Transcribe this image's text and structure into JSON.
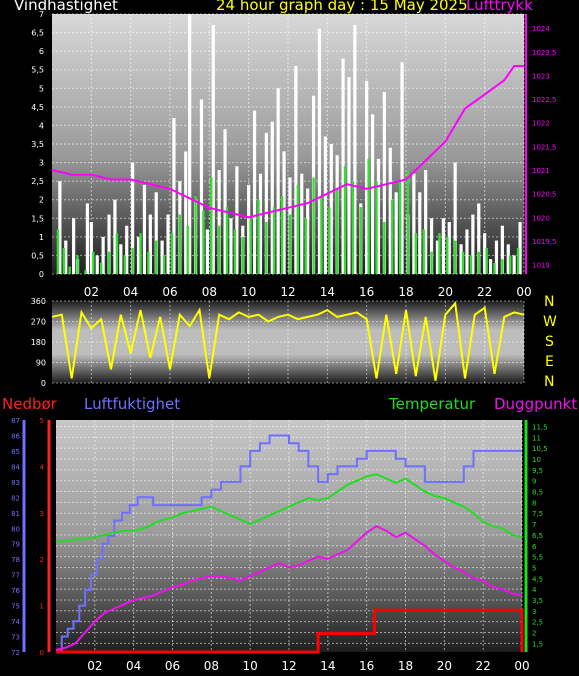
{
  "header": {
    "wind_label": "Vindhastighet",
    "title": "24 hour graph day : 15 May 2025",
    "pressure_label": "Lufttrykk"
  },
  "bottom_header": {
    "rain_label": "Nedbør",
    "humidity_label": "Luftfuktighet",
    "temp_label": "Temperatur",
    "dew_label": "Duggpunkt"
  },
  "compass": [
    "N",
    "W",
    "S",
    "E",
    "N"
  ],
  "colors": {
    "wind_label": "#ffffff",
    "title": "#ffff00",
    "pressure": "#ff00ff",
    "gust": "#ffffff",
    "wind": "#33dd33",
    "direction": "#ffff00",
    "rain_label": "#ff2020",
    "rain": "#ff0000",
    "humidity": "#7070ff",
    "temperature": "#22dd22",
    "dewpoint": "#ee11ee"
  },
  "chart_data": [
    {
      "type": "bar",
      "name": "wind",
      "x_ticks": [
        "02",
        "04",
        "06",
        "08",
        "10",
        "12",
        "14",
        "16",
        "18",
        "20",
        "22",
        "00"
      ],
      "ylim": [
        0,
        7
      ],
      "y_ticks": [
        "0",
        "0,5",
        "1",
        "1,5",
        "2",
        "2,5",
        "3",
        "3,5",
        "4",
        "4,5",
        "5",
        "5,5",
        "6",
        "6,5",
        "7"
      ],
      "y2lim": [
        1018.8,
        1024.3
      ],
      "y2_ticks": [
        "1019",
        "1019,5",
        "1020",
        "1020,5",
        "1021",
        "1021,5",
        "1022",
        "1022,5",
        "1023",
        "1023,5",
        "1024"
      ],
      "grid": true,
      "series": [
        {
          "name": "gust",
          "x": [
            0.2,
            0.4,
            0.7,
            0.9,
            1.1,
            1.3,
            1.6,
            1.8,
            2.0,
            2.3,
            2.6,
            2.9,
            3.2,
            3.5,
            3.8,
            4.1,
            4.4,
            4.7,
            5.0,
            5.3,
            5.6,
            5.9,
            6.2,
            6.5,
            6.8,
            7.0,
            7.3,
            7.6,
            7.9,
            8.2,
            8.5,
            8.8,
            9.1,
            9.4,
            9.7,
            10.0,
            10.3,
            10.6,
            10.9,
            11.2,
            11.5,
            11.8,
            12.1,
            12.4,
            12.7,
            13.0,
            13.3,
            13.6,
            13.9,
            14.2,
            14.5,
            14.8,
            15.1,
            15.4,
            15.7,
            16.0,
            16.3,
            16.6,
            16.9,
            17.2,
            17.5,
            17.8,
            18.1,
            18.4,
            18.7,
            19.0,
            19.3,
            19.6,
            19.9,
            20.2,
            20.5,
            20.8,
            21.1,
            21.4,
            21.7,
            22.0,
            22.3,
            22.6,
            22.9,
            23.2,
            23.5,
            23.8
          ],
          "values": [
            0,
            2.5,
            0.9,
            0,
            1.5,
            0.4,
            0,
            1.9,
            1.4,
            0.5,
            1.0,
            1.6,
            2.0,
            0.8,
            1.3,
            3.0,
            1.0,
            2.4,
            1.6,
            2.2,
            0.9,
            1.6,
            4.2,
            2.5,
            3.3,
            7.0,
            2.0,
            4.7,
            1.2,
            6.7,
            2.8,
            3.9,
            1.5,
            2.9,
            1.3,
            2.4,
            4.4,
            2.7,
            3.8,
            4.1,
            5.0,
            3.3,
            2.6,
            5.6,
            2.7,
            2.3,
            4.8,
            6.6,
            3.7,
            3.5,
            3.2,
            5.8,
            5.3,
            6.7,
            1.9,
            5.2,
            4.3,
            3.1,
            4.9,
            3.4,
            2.2,
            5.7,
            1.6,
            2.7,
            2.2,
            2.8,
            1.5,
            0.9,
            1.5,
            1.4,
            3.0,
            0.8,
            1.2,
            1.6,
            1.9,
            1.1,
            0.4,
            0.9,
            1.3,
            0.8,
            0.5,
            1.4
          ]
        },
        {
          "name": "wind",
          "x": [
            0.3,
            0.6,
            0.9,
            1.3,
            1.7,
            2.1,
            2.5,
            2.9,
            3.3,
            3.7,
            4.1,
            4.5,
            4.9,
            5.3,
            5.7,
            6.1,
            6.5,
            6.9,
            7.3,
            7.7,
            8.1,
            8.5,
            8.9,
            9.3,
            9.7,
            10.1,
            10.5,
            10.9,
            11.3,
            11.7,
            12.1,
            12.5,
            12.9,
            13.3,
            13.7,
            14.1,
            14.5,
            14.9,
            15.3,
            15.7,
            16.1,
            16.5,
            16.9,
            17.3,
            17.7,
            18.1,
            18.5,
            18.9,
            19.3,
            19.7,
            20.1,
            20.5,
            20.9,
            21.3,
            21.7,
            22.1,
            22.5,
            22.9,
            23.3,
            23.7
          ],
          "values": [
            1.2,
            0.7,
            0.2,
            0.5,
            0.1,
            0.6,
            0.3,
            0.6,
            1.1,
            0.5,
            0.7,
            1.1,
            0.6,
            0.9,
            0.5,
            1.1,
            1.6,
            1.3,
            2.1,
            1.7,
            2.6,
            1.3,
            1.8,
            1.2,
            1.0,
            1.5,
            2.0,
            1.4,
            1.8,
            2.1,
            1.6,
            2.4,
            1.5,
            2.6,
            2.1,
            1.8,
            2.3,
            2.9,
            2.5,
            1.8,
            3.1,
            2.5,
            1.4,
            2.0,
            2.5,
            2.8,
            1.1,
            1.2,
            0.6,
            1.1,
            1.0,
            0.9,
            0.6,
            0.5,
            0.6,
            0.7,
            0.3,
            0.4,
            0.5,
            0.7
          ]
        },
        {
          "name": "pressure",
          "axis": "y2",
          "x": [
            0,
            1,
            2,
            3,
            4,
            5,
            6,
            7,
            8,
            9,
            10,
            11,
            12,
            13,
            14,
            15,
            16,
            17,
            18,
            19,
            20,
            21,
            22,
            23,
            23.5,
            24
          ],
          "values": [
            1021.0,
            1020.9,
            1020.9,
            1020.8,
            1020.8,
            1020.7,
            1020.6,
            1020.4,
            1020.2,
            1020.1,
            1020.0,
            1020.1,
            1020.2,
            1020.3,
            1020.5,
            1020.7,
            1020.6,
            1020.7,
            1020.8,
            1021.2,
            1021.6,
            1022.3,
            1022.6,
            1022.9,
            1023.2,
            1023.2
          ]
        }
      ]
    },
    {
      "type": "line",
      "name": "wind_direction",
      "x_ticks": [
        "02",
        "04",
        "06",
        "08",
        "10",
        "12",
        "14",
        "16",
        "18",
        "20",
        "22",
        "00"
      ],
      "ylim": [
        0,
        360
      ],
      "y_ticks": [
        "0",
        "90",
        "180",
        "270",
        "360"
      ],
      "grid": true,
      "series": [
        {
          "name": "direction",
          "x": [
            0,
            0.5,
            1.0,
            1.5,
            2.0,
            2.5,
            3.0,
            3.5,
            4.0,
            4.5,
            5.0,
            5.5,
            6.0,
            6.5,
            7.0,
            7.5,
            8.0,
            8.5,
            9.0,
            9.5,
            10.0,
            10.5,
            11.0,
            11.5,
            12.0,
            12.5,
            13.0,
            13.5,
            14.0,
            14.5,
            15.0,
            15.5,
            16.0,
            16.5,
            17.0,
            17.5,
            18.0,
            18.5,
            19.0,
            19.5,
            20.0,
            20.5,
            21.0,
            21.5,
            22.0,
            22.5,
            23.0,
            23.5,
            24.0
          ],
          "values": [
            290,
            300,
            20,
            310,
            240,
            280,
            60,
            300,
            130,
            320,
            110,
            290,
            60,
            300,
            250,
            320,
            20,
            300,
            280,
            310,
            290,
            300,
            270,
            290,
            300,
            280,
            290,
            300,
            320,
            290,
            300,
            310,
            280,
            20,
            300,
            40,
            320,
            30,
            290,
            10,
            300,
            350,
            20,
            300,
            330,
            40,
            290,
            310,
            300
          ]
        }
      ]
    },
    {
      "type": "line",
      "name": "temperature_humidity",
      "x_ticks": [
        "02",
        "04",
        "06",
        "08",
        "10",
        "12",
        "14",
        "16",
        "18",
        "20",
        "22",
        "00"
      ],
      "ylim": [
        72,
        87
      ],
      "y_ticks": [
        "72",
        "73",
        "74",
        "75",
        "76",
        "77",
        "78",
        "79",
        "80",
        "81",
        "82",
        "83",
        "84",
        "85",
        "86",
        "87"
      ],
      "y2lim": [
        1.1,
        11.8
      ],
      "y2_ticks": [
        "1,5",
        "2",
        "2,5",
        "3",
        "3,5",
        "4",
        "4,5",
        "5",
        "5,5",
        "6",
        "6,5",
        "7",
        "7,5",
        "8",
        "8,5",
        "9",
        "9,5",
        "10",
        "10,5",
        "11",
        "11,5"
      ],
      "rain_ylim": [
        0,
        5
      ],
      "rain_ticks": [
        "0",
        "1",
        "2",
        "3",
        "4",
        "5"
      ],
      "grid": true,
      "series": [
        {
          "name": "humidity",
          "x": [
            0,
            0.3,
            0.6,
            0.9,
            1.2,
            1.5,
            1.8,
            2.1,
            2.4,
            2.7,
            3.0,
            3.4,
            3.8,
            4.2,
            4.6,
            5.0,
            5.5,
            6.0,
            6.5,
            7.0,
            7.5,
            8.0,
            8.5,
            9.0,
            9.5,
            10.0,
            10.5,
            11.0,
            11.5,
            12.0,
            12.5,
            13.0,
            13.5,
            14.0,
            14.5,
            15.0,
            15.5,
            16.0,
            16.5,
            17.0,
            17.5,
            18.0,
            18.5,
            19.0,
            19.5,
            20.0,
            20.5,
            21.0,
            21.5,
            22.0,
            22.5,
            23.0,
            23.5,
            24.0
          ],
          "values": [
            72.1,
            73.0,
            73.5,
            74.0,
            75.0,
            76.0,
            77.0,
            78.0,
            79.0,
            79.5,
            80.5,
            81.0,
            81.5,
            82.0,
            82.0,
            81.5,
            81.5,
            81.5,
            81.5,
            81.5,
            82.0,
            82.5,
            83.0,
            83.0,
            84.0,
            85.0,
            85.5,
            86.0,
            86.0,
            85.5,
            85.0,
            84.0,
            83.0,
            83.5,
            84.0,
            84.0,
            84.5,
            85.0,
            85.0,
            85.0,
            84.5,
            84.0,
            84.0,
            83.0,
            83.0,
            83.0,
            83.0,
            84.0,
            85.0,
            85.0,
            85.0,
            85.0,
            85.0,
            85.0
          ]
        },
        {
          "name": "temperature",
          "axis": "y2",
          "x": [
            0,
            0.5,
            1.0,
            1.5,
            2.0,
            2.5,
            3.0,
            3.5,
            4.0,
            4.5,
            5.0,
            5.5,
            6.0,
            6.5,
            7.0,
            7.5,
            8.0,
            8.5,
            9.0,
            9.5,
            10.0,
            10.5,
            11.0,
            11.5,
            12.0,
            12.5,
            13.0,
            13.5,
            14.0,
            14.5,
            15.0,
            15.5,
            16.0,
            16.5,
            17.0,
            17.5,
            18.0,
            18.5,
            19.0,
            19.5,
            20.0,
            20.5,
            21.0,
            21.5,
            22.0,
            22.5,
            23.0,
            23.5,
            24.0
          ],
          "values": [
            6.2,
            6.2,
            6.3,
            6.3,
            6.4,
            6.5,
            6.6,
            6.7,
            6.7,
            6.8,
            7.0,
            7.2,
            7.3,
            7.5,
            7.6,
            7.7,
            7.8,
            7.6,
            7.4,
            7.2,
            7.0,
            7.2,
            7.4,
            7.6,
            7.8,
            8.0,
            8.2,
            8.1,
            8.2,
            8.5,
            8.8,
            9.0,
            9.2,
            9.3,
            9.1,
            8.9,
            9.1,
            8.8,
            8.5,
            8.3,
            8.2,
            8.0,
            7.8,
            7.5,
            7.1,
            6.9,
            6.8,
            6.5,
            6.4
          ]
        },
        {
          "name": "dewpoint",
          "axis": "y2",
          "x": [
            0,
            0.5,
            1.0,
            1.5,
            2.0,
            2.5,
            3.0,
            3.5,
            4.0,
            4.5,
            5.0,
            5.5,
            6.0,
            6.5,
            7.0,
            7.5,
            8.0,
            8.5,
            9.0,
            9.5,
            10.0,
            10.5,
            11.0,
            11.5,
            12.0,
            12.5,
            13.0,
            13.5,
            14.0,
            14.5,
            15.0,
            15.5,
            16.0,
            16.5,
            17.0,
            17.5,
            18.0,
            18.5,
            19.0,
            19.5,
            20.0,
            20.5,
            21.0,
            21.5,
            22.0,
            22.5,
            23.0,
            23.5,
            24.0
          ],
          "values": [
            1.2,
            1.3,
            1.5,
            2.0,
            2.5,
            2.9,
            3.1,
            3.3,
            3.5,
            3.6,
            3.7,
            3.9,
            4.1,
            4.2,
            4.4,
            4.5,
            4.6,
            4.6,
            4.5,
            4.4,
            4.6,
            4.8,
            5.0,
            5.2,
            5.0,
            5.1,
            5.3,
            5.5,
            5.4,
            5.6,
            5.8,
            6.2,
            6.6,
            6.9,
            6.7,
            6.4,
            6.6,
            6.3,
            6.0,
            5.6,
            5.3,
            5.0,
            4.8,
            4.5,
            4.4,
            4.1,
            4.0,
            3.8,
            3.7
          ]
        },
        {
          "name": "rain",
          "axis": "rain",
          "x": [
            0,
            0.9,
            13.5,
            16.4,
            23.8,
            24.0
          ],
          "values": [
            0,
            0,
            0.4,
            0.9,
            0.9,
            0
          ]
        }
      ]
    }
  ]
}
